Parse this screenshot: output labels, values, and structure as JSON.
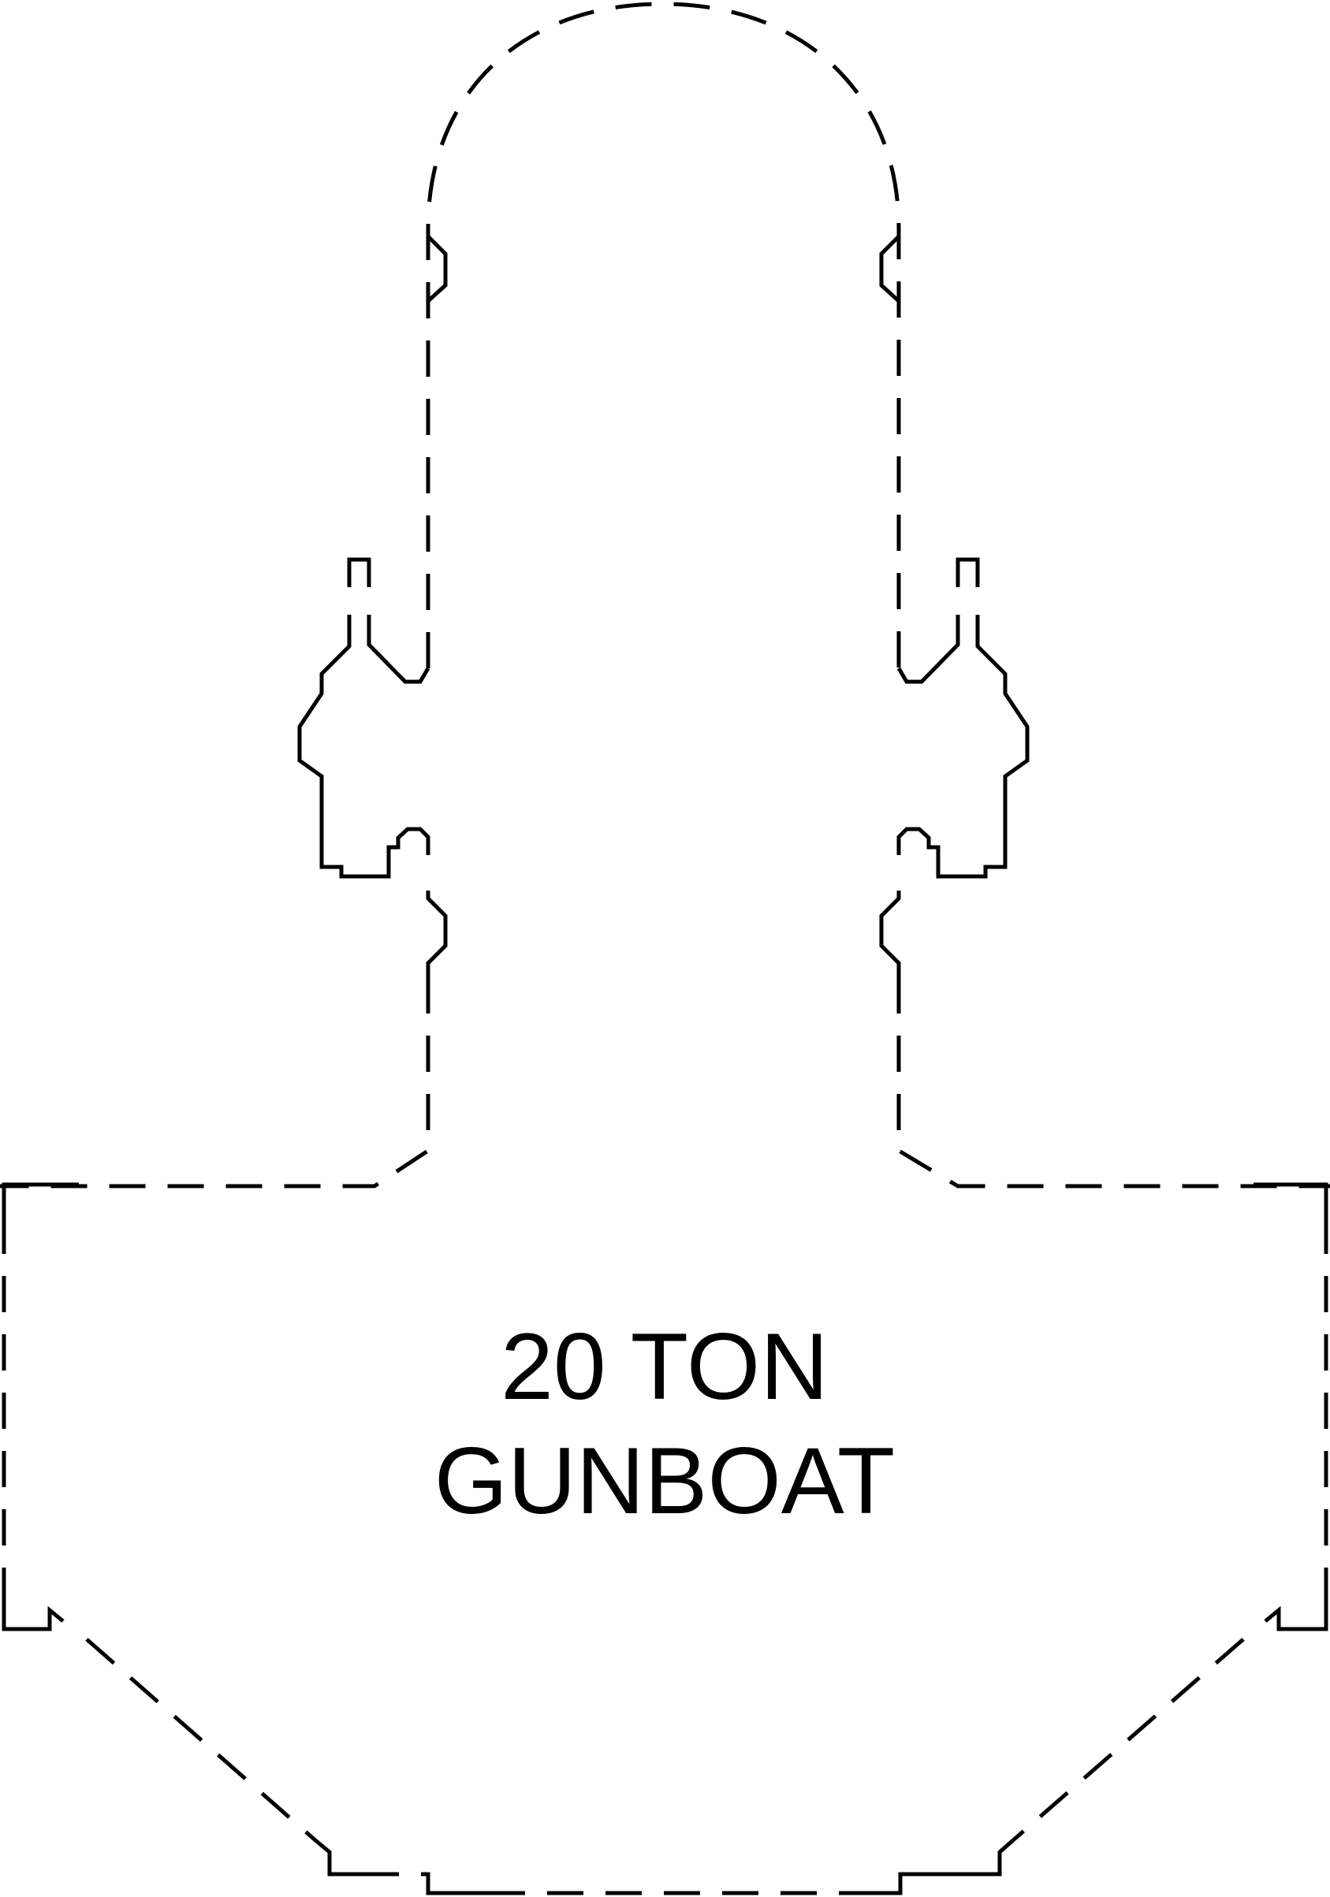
{
  "label": {
    "line1": "20 TON",
    "line2": "GUNBOAT"
  },
  "colors": {
    "line": "#000000",
    "background": "#ffffff"
  }
}
